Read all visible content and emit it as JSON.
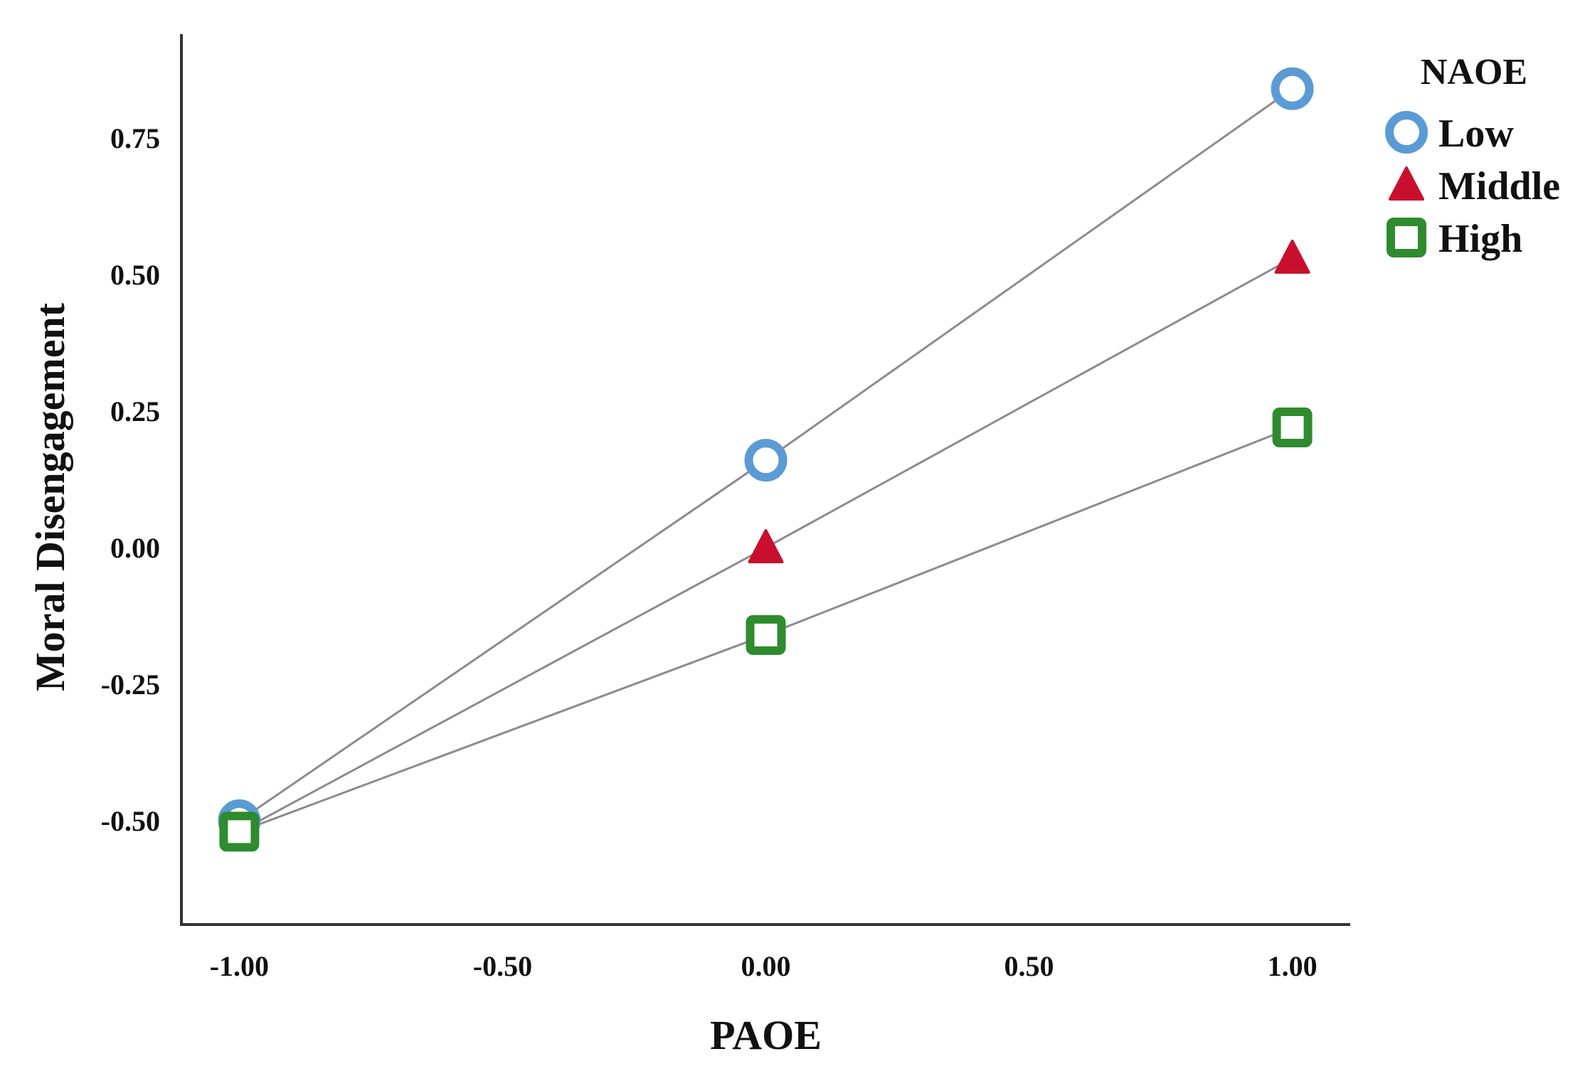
{
  "chart_data": {
    "type": "line",
    "xlabel": "PAOE",
    "ylabel": "Moral Disengagement",
    "x_ticks": [
      "-1.00",
      "-0.50",
      "0.00",
      "0.50",
      "1.00"
    ],
    "y_ticks": [
      "0.75",
      "0.50",
      "0.25",
      "0.00",
      "-0.25",
      "-0.50"
    ],
    "xlim": [
      -1.11,
      1.11
    ],
    "ylim": [
      -0.69,
      0.94
    ],
    "x": [
      -1.0,
      0.0,
      1.0
    ],
    "legend": {
      "title": "NAOE",
      "position": "top-right"
    },
    "series": [
      {
        "name": "Low",
        "marker": "circle",
        "color": "#5b9bd5",
        "values": [
          -0.5,
          0.16,
          0.84
        ]
      },
      {
        "name": "Middle",
        "marker": "triangle",
        "color": "#c8102e",
        "values": [
          -0.52,
          0.0,
          0.53
        ]
      },
      {
        "name": "High",
        "marker": "square",
        "color": "#2e8b2e",
        "values": [
          -0.52,
          -0.16,
          0.22
        ]
      }
    ]
  }
}
